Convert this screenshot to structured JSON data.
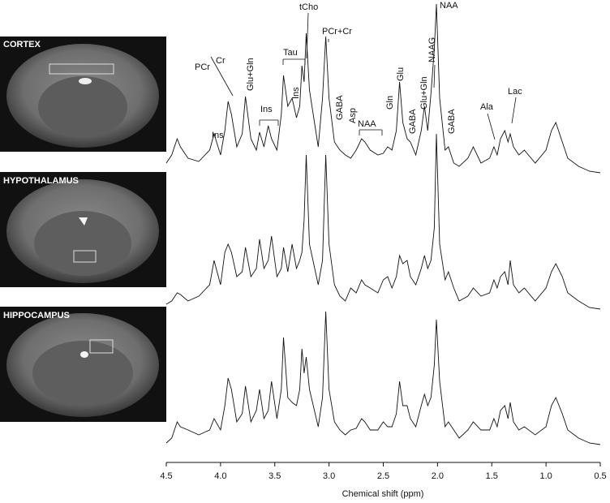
{
  "chart_data": {
    "type": "line",
    "x_label": "Chemical shift (ppm)",
    "xlim": [
      4.5,
      0.5
    ],
    "xticks": [
      4.5,
      {
        "value": 4,
        "label": "4.0"
      },
      3.5,
      {
        "value": 3,
        "label": "3.0"
      },
      2.5,
      {
        "value": 2,
        "label": "2.0"
      },
      1.5,
      {
        "value": 1,
        "label": "1.0"
      },
      0.5
    ],
    "ylim": [
      0,
      110
    ],
    "color": "#111111",
    "x": [
      4.5,
      4.45,
      4.4,
      4.37,
      4.3,
      4.2,
      4.1,
      4.06,
      4.0,
      3.96,
      3.93,
      3.9,
      3.85,
      3.8,
      3.77,
      3.72,
      3.67,
      3.64,
      3.6,
      3.56,
      3.53,
      3.48,
      3.44,
      3.42,
      3.38,
      3.34,
      3.3,
      3.27,
      3.25,
      3.23,
      3.21,
      3.18,
      3.1,
      3.06,
      3.03,
      3.0,
      2.95,
      2.9,
      2.85,
      2.8,
      2.75,
      2.7,
      2.67,
      2.62,
      2.55,
      2.5,
      2.46,
      2.42,
      2.38,
      2.35,
      2.32,
      2.28,
      2.25,
      2.2,
      2.15,
      2.12,
      2.09,
      2.06,
      2.03,
      2.01,
      1.98,
      1.93,
      1.9,
      1.85,
      1.8,
      1.72,
      1.67,
      1.6,
      1.52,
      1.48,
      1.45,
      1.42,
      1.38,
      1.35,
      1.33,
      1.3,
      1.25,
      1.2,
      1.1,
      1.0,
      0.95,
      0.91,
      0.85,
      0.8,
      0.7,
      0.6,
      0.5
    ],
    "series": [
      {
        "name": "CORTEX",
        "values": [
          7,
          12,
          22,
          17,
          10,
          8,
          15,
          25,
          12,
          27,
          45,
          37,
          17,
          25,
          48,
          22,
          15,
          26,
          17,
          30,
          22,
          15,
          37,
          61,
          42,
          47,
          35,
          42,
          67,
          57,
          87,
          52,
          17,
          47,
          85,
          47,
          20,
          15,
          12,
          10,
          15,
          22,
          20,
          15,
          12,
          13,
          17,
          15,
          27,
          57,
          32,
          22,
          20,
          12,
          27,
          42,
          27,
          50,
          77,
          105,
          47,
          15,
          17,
          7,
          5,
          10,
          17,
          7,
          10,
          17,
          12,
          22,
          27,
          20,
          25,
          17,
          12,
          15,
          7,
          15,
          27,
          32,
          20,
          10,
          5,
          2,
          1
        ]
      },
      {
        "name": "HYPOTHALAMUS",
        "values": [
          5,
          7,
          12,
          11,
          7,
          10,
          17,
          32,
          17,
          37,
          42,
          37,
          22,
          25,
          40,
          22,
          27,
          45,
          27,
          32,
          47,
          22,
          27,
          40,
          25,
          42,
          27,
          32,
          37,
          57,
          97,
          42,
          17,
          32,
          97,
          42,
          17,
          10,
          7,
          15,
          12,
          20,
          17,
          15,
          12,
          20,
          22,
          15,
          22,
          35,
          30,
          32,
          22,
          17,
          27,
          35,
          27,
          32,
          52,
          110,
          42,
          20,
          25,
          15,
          7,
          10,
          15,
          10,
          12,
          20,
          15,
          22,
          25,
          17,
          32,
          17,
          12,
          15,
          7,
          15,
          25,
          30,
          22,
          12,
          7,
          3,
          2
        ]
      },
      {
        "name": "HIPPOCAMPUS",
        "values": [
          2,
          5,
          15,
          12,
          10,
          7,
          10,
          17,
          10,
          25,
          42,
          35,
          15,
          20,
          37,
          15,
          22,
          35,
          17,
          22,
          40,
          17,
          35,
          67,
          30,
          27,
          25,
          35,
          60,
          45,
          55,
          35,
          12,
          30,
          83,
          35,
          15,
          10,
          7,
          10,
          11,
          17,
          15,
          10,
          10,
          15,
          12,
          12,
          20,
          40,
          25,
          25,
          17,
          12,
          25,
          32,
          25,
          30,
          50,
          78,
          40,
          12,
          15,
          10,
          5,
          10,
          15,
          10,
          10,
          17,
          12,
          22,
          25,
          17,
          27,
          15,
          10,
          12,
          7,
          12,
          25,
          30,
          20,
          10,
          5,
          2,
          1
        ]
      }
    ],
    "annotations": [
      "Ins",
      "PCr",
      "Cr",
      "Glu+Gln",
      "Tau",
      "Ins",
      "Ins",
      "tCho",
      "PCr+Cr",
      "GABA",
      "Asp",
      "NAA",
      "Gln",
      "Glu",
      "GABA",
      "Glu+Gln",
      "NAAG",
      "NAA",
      "GABA",
      "Ala",
      "Lac"
    ]
  }
}
